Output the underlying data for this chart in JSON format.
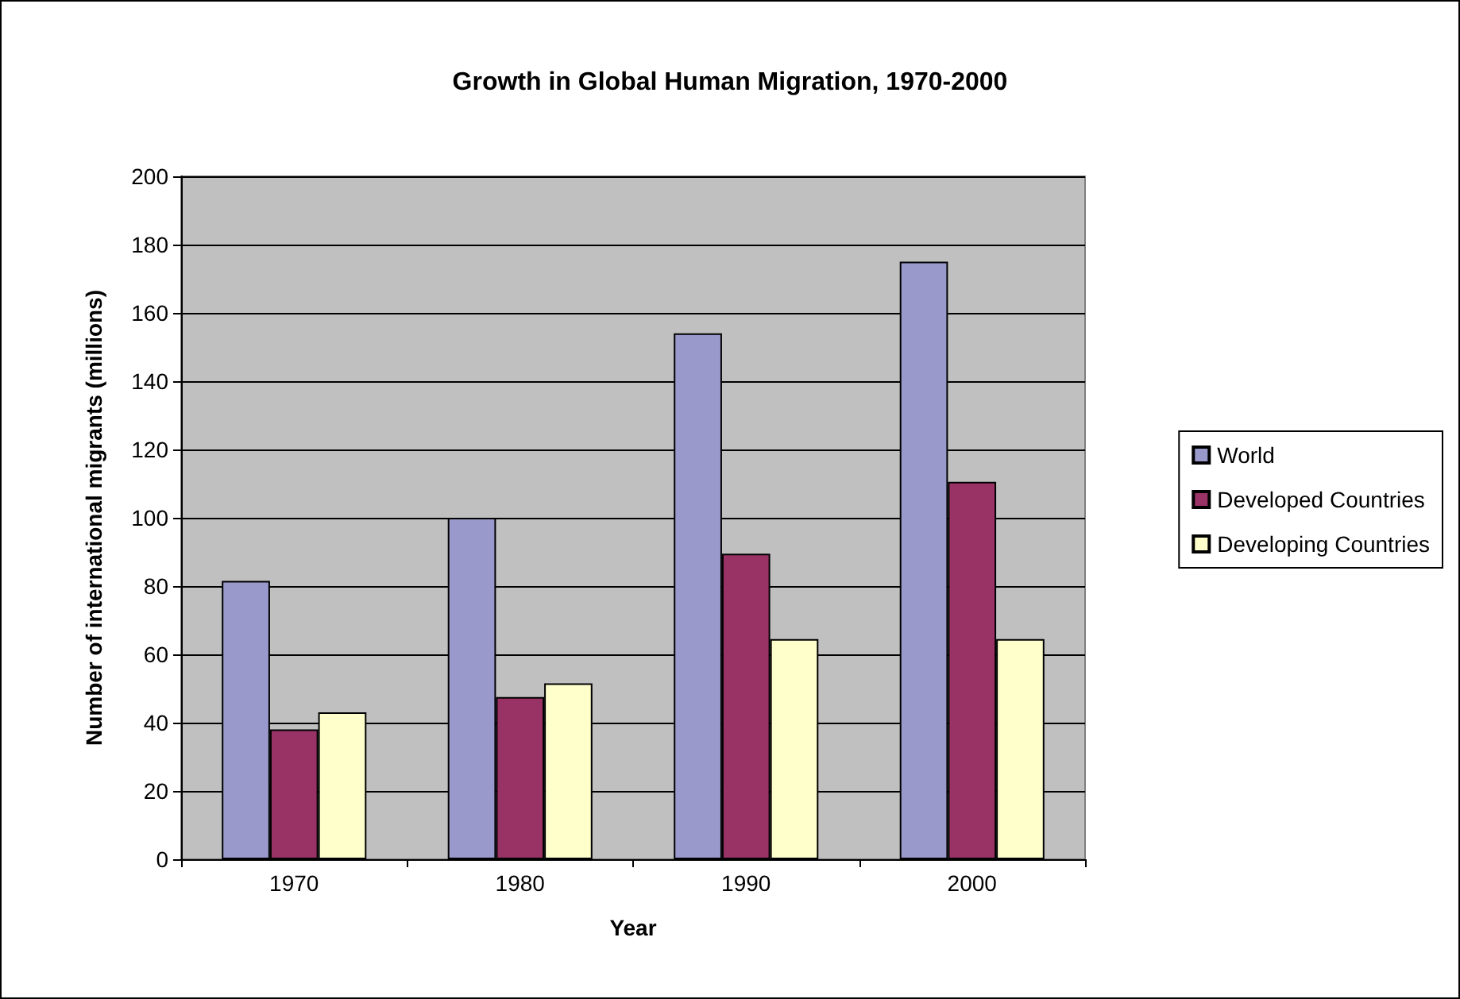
{
  "chart_data": {
    "type": "bar",
    "title": "Growth in Global Human Migration, 1970-2000",
    "xlabel": "Year",
    "ylabel": "Number of international migrants (millions)",
    "categories": [
      "1970",
      "1980",
      "1990",
      "2000"
    ],
    "series": [
      {
        "name": "World",
        "color": "#9999cc",
        "values": [
          81.5,
          100,
          154,
          175
        ]
      },
      {
        "name": "Developed Countries",
        "color": "#993366",
        "values": [
          38,
          47.5,
          89.5,
          110.5
        ]
      },
      {
        "name": "Developing Countries",
        "color": "#ffffcc",
        "values": [
          43,
          51.5,
          64.5,
          64.5
        ]
      }
    ],
    "ylim": [
      0,
      200
    ],
    "yticks": [
      0,
      20,
      40,
      60,
      80,
      100,
      120,
      140,
      160,
      180,
      200
    ],
    "grid": "y",
    "legend": "right"
  }
}
